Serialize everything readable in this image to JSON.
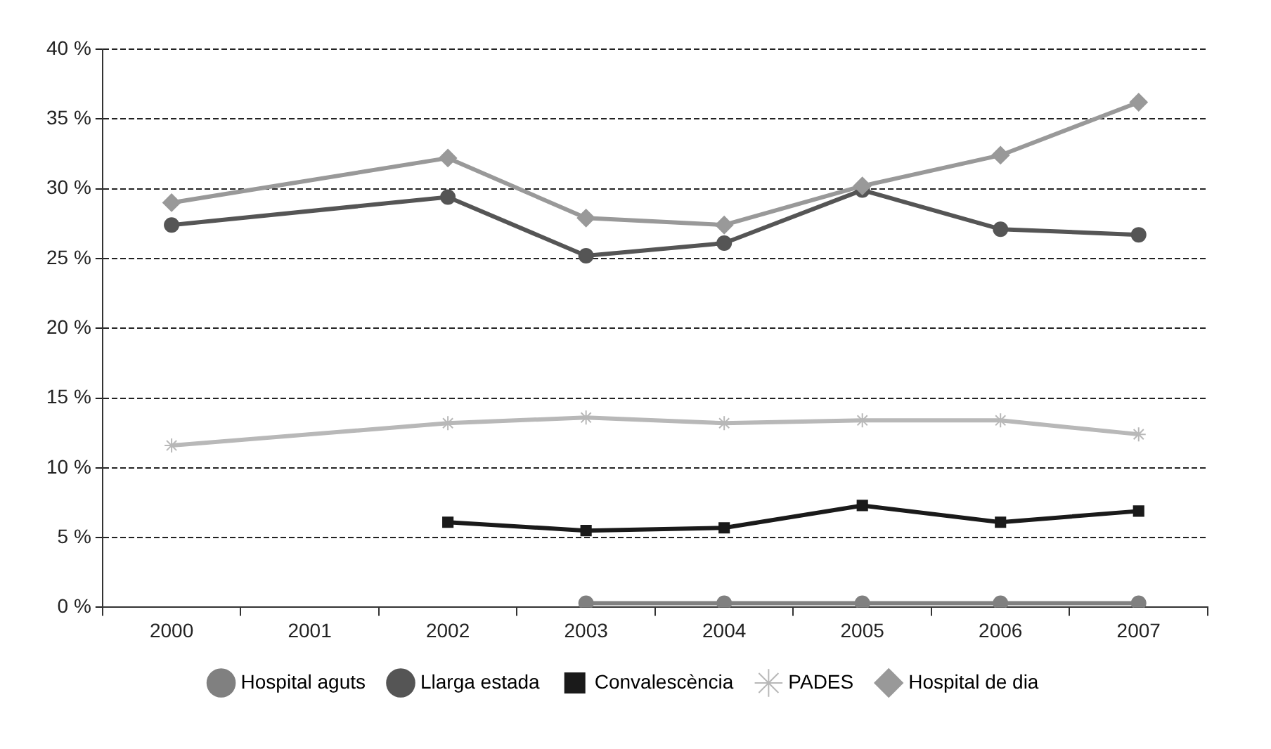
{
  "chart_data": {
    "type": "line",
    "categories": [
      "2000",
      "2001",
      "2002",
      "2003",
      "2004",
      "2005",
      "2006",
      "2007"
    ],
    "series": [
      {
        "name": "Hospital aguts",
        "color": "#808080",
        "marker": "circle",
        "values": [
          null,
          null,
          null,
          0.3,
          0.3,
          0.3,
          0.3,
          0.3
        ]
      },
      {
        "name": "Llarga estada",
        "color": "#555555",
        "marker": "circle",
        "values": [
          27.4,
          null,
          29.4,
          25.2,
          26.1,
          29.9,
          27.1,
          26.7
        ]
      },
      {
        "name": "Convalescència",
        "color": "#1a1a1a",
        "marker": "square",
        "values": [
          null,
          null,
          6.1,
          5.5,
          5.7,
          7.3,
          6.1,
          6.9
        ]
      },
      {
        "name": "PADES",
        "color": "#b8b8b8",
        "marker": "cross",
        "values": [
          11.6,
          null,
          13.2,
          13.6,
          13.2,
          13.4,
          13.4,
          12.4
        ]
      },
      {
        "name": "Hospital de dia",
        "color": "#999999",
        "marker": "diamond",
        "values": [
          29,
          null,
          32.2,
          27.9,
          27.4,
          30.2,
          32.4,
          36.2
        ]
      }
    ],
    "ylim": [
      0,
      40
    ],
    "yticks": [
      {
        "value": 0,
        "label": "0 %"
      },
      {
        "value": 5,
        "label": "5 %"
      },
      {
        "value": 10,
        "label": "10 %"
      },
      {
        "value": 15,
        "label": "15 %"
      },
      {
        "value": 20,
        "label": "20 %"
      },
      {
        "value": 25,
        "label": "25 %"
      },
      {
        "value": 30,
        "label": "30 %"
      },
      {
        "value": 35,
        "label": "35 %"
      },
      {
        "value": 40,
        "label": "40 %"
      }
    ],
    "grid": "y",
    "legend": "bottom",
    "line_style": "solid"
  }
}
